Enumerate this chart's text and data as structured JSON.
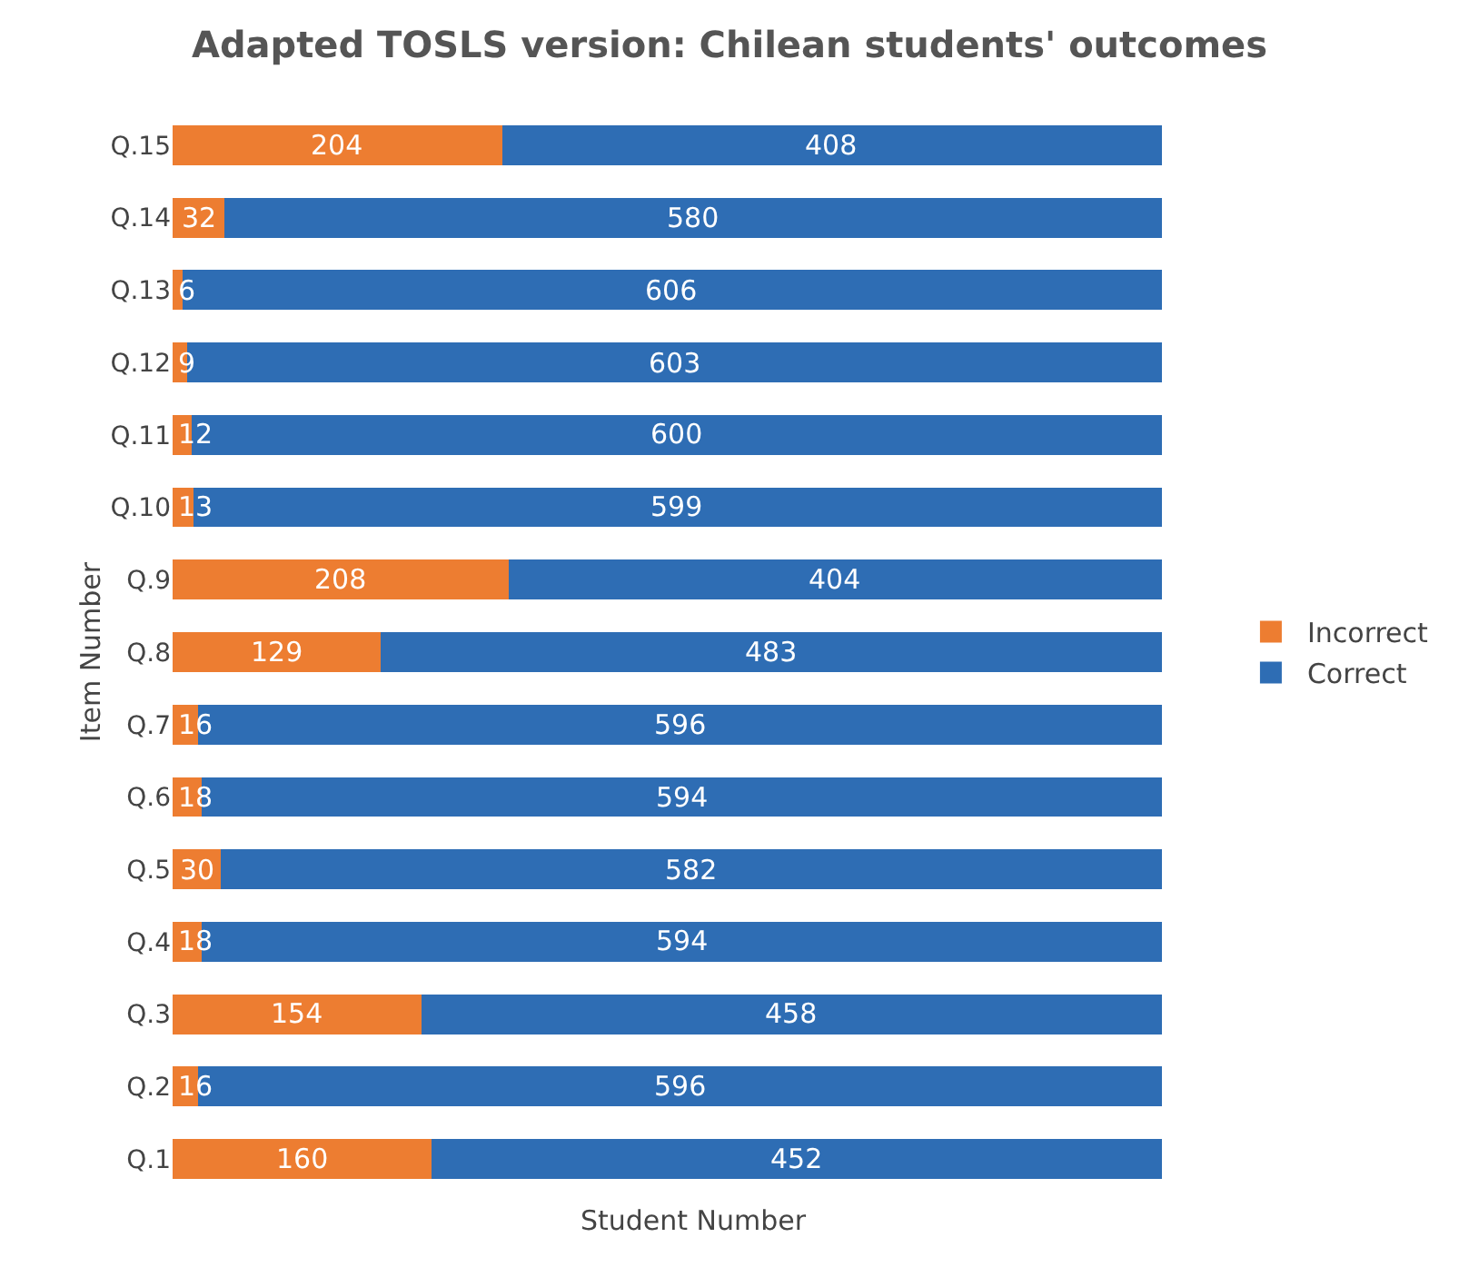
{
  "chart_data": {
    "type": "bar",
    "orientation": "horizontal",
    "stacked": true,
    "title": "Adapted TOSLS version: Chilean students' outcomes",
    "xlabel": "Student Number",
    "ylabel": "Item Number",
    "categories": [
      "Q.15",
      "Q.14",
      "Q.13",
      "Q.12",
      "Q.11",
      "Q.10",
      "Q.9",
      "Q.8",
      "Q.7",
      "Q.6",
      "Q.5",
      "Q.4",
      "Q.3",
      "Q.2",
      "Q.1"
    ],
    "series": [
      {
        "name": "Incorrect",
        "color": "#ed7d31",
        "values": [
          204,
          32,
          6,
          9,
          12,
          13,
          208,
          129,
          16,
          18,
          30,
          18,
          154,
          16,
          160
        ]
      },
      {
        "name": "Correct",
        "color": "#2e6db4",
        "values": [
          408,
          580,
          606,
          603,
          600,
          599,
          404,
          483,
          596,
          594,
          582,
          594,
          458,
          596,
          452
        ]
      }
    ],
    "data_labels": true,
    "tick_labels": "y",
    "grid": false,
    "legend": "right"
  }
}
